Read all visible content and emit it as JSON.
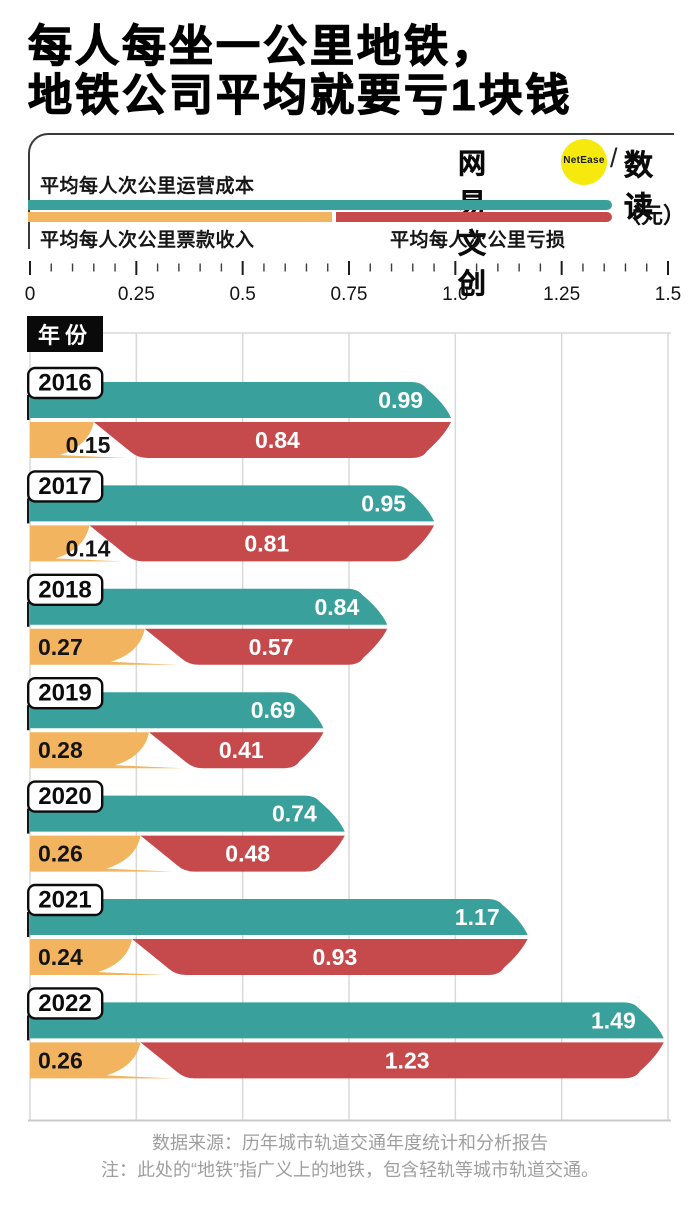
{
  "title": {
    "line1": "每人每坐一公里地铁，",
    "line2": "地铁公司平均就要亏1块钱"
  },
  "logo": {
    "brand": "网易文创",
    "badge": "NetEase",
    "separator": "/",
    "product": "数读",
    "badge_color": "#f6e90d"
  },
  "legend": {
    "cost_label": "平均每人次公里运营成本",
    "income_label": "平均每人次公里票款收入",
    "loss_label": "平均每人次公里亏损",
    "unit_label": "（元）"
  },
  "year_header": "年份",
  "axis": {
    "tick_labels": [
      "0",
      "0.25",
      "0.5",
      "0.75",
      "1.0",
      "1.25",
      "1.5"
    ],
    "min": 0,
    "max": 1.5,
    "minor_per_major": 4
  },
  "chart_data": {
    "type": "bar",
    "orientation": "horizontal",
    "unit": "元",
    "title": "每人每坐一公里地铁，地铁公司平均就要亏1块钱",
    "categories": [
      "2016",
      "2017",
      "2018",
      "2019",
      "2020",
      "2021",
      "2022"
    ],
    "series": [
      {
        "name": "平均每人次公里运营成本",
        "color": "#39a09c",
        "values": [
          0.99,
          0.95,
          0.84,
          0.69,
          0.74,
          1.17,
          1.49
        ]
      },
      {
        "name": "平均每人次公里票款收入",
        "color": "#f3b45f",
        "values": [
          0.15,
          0.14,
          0.27,
          0.28,
          0.26,
          0.24,
          0.26
        ]
      },
      {
        "name": "平均每人次公里亏损",
        "color": "#c64a4c",
        "values": [
          0.84,
          0.81,
          0.57,
          0.41,
          0.48,
          0.93,
          1.23
        ]
      }
    ],
    "xlim": [
      0,
      1.5
    ],
    "grid_step": 0.25,
    "grid": true,
    "legend_position": "top"
  },
  "footer": {
    "source": "数据来源：历年城市轨道交通年度统计和分析报告",
    "note": "注：此处的“地铁”指广义上的地铁，包含轻轨等城市轨道交通。"
  },
  "colors": {
    "teal": "#39a09c",
    "orange": "#f3b45f",
    "red": "#c64a4c",
    "yellow": "#f6e90d",
    "grid": "#d9d9d9",
    "axis_line": "#c9c9c9",
    "footer_text": "#9e9e9e"
  }
}
